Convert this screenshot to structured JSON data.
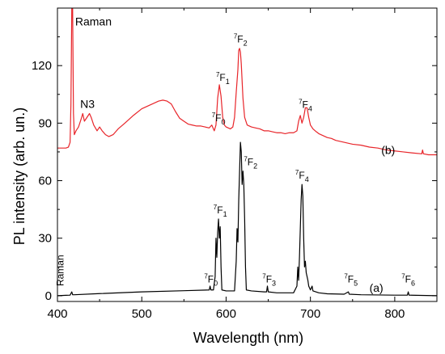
{
  "chart_data": {
    "type": "line",
    "xlabel": "Wavelength (nm)",
    "ylabel": "PL intensity (arb. un.)",
    "xlim": [
      400,
      850
    ],
    "ylim": [
      -3,
      150
    ],
    "xticks": [
      400,
      500,
      600,
      700,
      800
    ],
    "yticks": [
      0,
      30,
      60,
      90,
      120
    ],
    "series": [
      {
        "name": "(b)",
        "color": "#e8252a",
        "points": [
          [
            400,
            77
          ],
          [
            410,
            77
          ],
          [
            413,
            77.5
          ],
          [
            415,
            80
          ],
          [
            416,
            100
          ],
          [
            417,
            150
          ],
          [
            418,
            150
          ],
          [
            419,
            95
          ],
          [
            420,
            84
          ],
          [
            422,
            86
          ],
          [
            425,
            88
          ],
          [
            428,
            92
          ],
          [
            430,
            95
          ],
          [
            432,
            91
          ],
          [
            435,
            93
          ],
          [
            438,
            95
          ],
          [
            440,
            93
          ],
          [
            443,
            89
          ],
          [
            447,
            86
          ],
          [
            450,
            88
          ],
          [
            453,
            86
          ],
          [
            457,
            84
          ],
          [
            461,
            83
          ],
          [
            466,
            84
          ],
          [
            472,
            87
          ],
          [
            480,
            90
          ],
          [
            490,
            94
          ],
          [
            500,
            97.5
          ],
          [
            510,
            99.5
          ],
          [
            520,
            101.5
          ],
          [
            525,
            102
          ],
          [
            530,
            101.5
          ],
          [
            535,
            100
          ],
          [
            540,
            96
          ],
          [
            545,
            92.5
          ],
          [
            550,
            91
          ],
          [
            555,
            89.5
          ],
          [
            560,
            89
          ],
          [
            565,
            88.5
          ],
          [
            570,
            88.5
          ],
          [
            575,
            88
          ],
          [
            580,
            87.5
          ],
          [
            583,
            89
          ],
          [
            586,
            86
          ],
          [
            588,
            89
          ],
          [
            590,
            103
          ],
          [
            592,
            110
          ],
          [
            594,
            104
          ],
          [
            596,
            93
          ],
          [
            598,
            89
          ],
          [
            600,
            88
          ],
          [
            605,
            87
          ],
          [
            608,
            88
          ],
          [
            610,
            93
          ],
          [
            612,
            106
          ],
          [
            614,
            118
          ],
          [
            615,
            128
          ],
          [
            616,
            129
          ],
          [
            617,
            127
          ],
          [
            618,
            121
          ],
          [
            620,
            103
          ],
          [
            622,
            93
          ],
          [
            625,
            89
          ],
          [
            630,
            88
          ],
          [
            635,
            87.5
          ],
          [
            640,
            87
          ],
          [
            645,
            86
          ],
          [
            650,
            86
          ],
          [
            655,
            85.5
          ],
          [
            660,
            85
          ],
          [
            665,
            85
          ],
          [
            670,
            84.5
          ],
          [
            675,
            85
          ],
          [
            680,
            85
          ],
          [
            684,
            86
          ],
          [
            686,
            91
          ],
          [
            688,
            94
          ],
          [
            690,
            90
          ],
          [
            692,
            93
          ],
          [
            694,
            98
          ],
          [
            696,
            98
          ],
          [
            698,
            93
          ],
          [
            700,
            89
          ],
          [
            703,
            87
          ],
          [
            707,
            85.5
          ],
          [
            710,
            84.5
          ],
          [
            715,
            83.5
          ],
          [
            720,
            82.5
          ],
          [
            725,
            82
          ],
          [
            730,
            81
          ],
          [
            740,
            80
          ],
          [
            750,
            79
          ],
          [
            760,
            78.5
          ],
          [
            770,
            77.5
          ],
          [
            780,
            77
          ],
          [
            790,
            76
          ],
          [
            800,
            75.5
          ],
          [
            810,
            75
          ],
          [
            820,
            74.5
          ],
          [
            832,
            74
          ],
          [
            833,
            76
          ],
          [
            834,
            74
          ],
          [
            840,
            73.5
          ],
          [
            850,
            73.5
          ]
        ]
      },
      {
        "name": "(a)",
        "color": "#000000",
        "points": [
          [
            400,
            0
          ],
          [
            410,
            0.2
          ],
          [
            415,
            0.3
          ],
          [
            417,
            2
          ],
          [
            418,
            0.5
          ],
          [
            420,
            0.5
          ],
          [
            450,
            1.1
          ],
          [
            500,
            2
          ],
          [
            550,
            2.6
          ],
          [
            580,
            3
          ],
          [
            581,
            5
          ],
          [
            582,
            3
          ],
          [
            585,
            3
          ],
          [
            587,
            10
          ],
          [
            588,
            30
          ],
          [
            589,
            20
          ],
          [
            590,
            33
          ],
          [
            591,
            40
          ],
          [
            592,
            30
          ],
          [
            593,
            36
          ],
          [
            594,
            15
          ],
          [
            595,
            3
          ],
          [
            600,
            2.5
          ],
          [
            610,
            2.5
          ],
          [
            612,
            18
          ],
          [
            613,
            35
          ],
          [
            614,
            28
          ],
          [
            615,
            50
          ],
          [
            616,
            65
          ],
          [
            617,
            80
          ],
          [
            618,
            75
          ],
          [
            619,
            58
          ],
          [
            620,
            65
          ],
          [
            621,
            58
          ],
          [
            622,
            40
          ],
          [
            623,
            15
          ],
          [
            624,
            3
          ],
          [
            630,
            2.5
          ],
          [
            645,
            2
          ],
          [
            648,
            2
          ],
          [
            649,
            5
          ],
          [
            650,
            2
          ],
          [
            660,
            1.5
          ],
          [
            680,
            1.5
          ],
          [
            684,
            5
          ],
          [
            685,
            15
          ],
          [
            686,
            8
          ],
          [
            687,
            20
          ],
          [
            688,
            35
          ],
          [
            689,
            50
          ],
          [
            690,
            58
          ],
          [
            691,
            52
          ],
          [
            692,
            30
          ],
          [
            693,
            15
          ],
          [
            694,
            18
          ],
          [
            695,
            12
          ],
          [
            697,
            8
          ],
          [
            698,
            5
          ],
          [
            700,
            3
          ],
          [
            702,
            5
          ],
          [
            703,
            2.5
          ],
          [
            710,
            1.5
          ],
          [
            720,
            1
          ],
          [
            740,
            0.8
          ],
          [
            745,
            2
          ],
          [
            746,
            0.8
          ],
          [
            760,
            0.5
          ],
          [
            800,
            0.3
          ],
          [
            815,
            0.3
          ],
          [
            816,
            2
          ],
          [
            817,
            0.3
          ],
          [
            850,
            0
          ]
        ]
      }
    ],
    "annotations": [
      {
        "id": "raman-b",
        "text": "Raman",
        "x": 421,
        "y": 141,
        "series": "(b)"
      },
      {
        "id": "n3",
        "text": "N3",
        "x": 427,
        "y": 98,
        "series": "(b)"
      },
      {
        "id": "f0-b",
        "base": "F",
        "sup": "7",
        "sub": "0",
        "x": 583,
        "y": 91,
        "series": "(b)"
      },
      {
        "id": "f1-b",
        "base": "F",
        "sup": "7",
        "sub": "1",
        "x": 588,
        "y": 112,
        "series": "(b)"
      },
      {
        "id": "f2-b",
        "base": "F",
        "sup": "7",
        "sub": "2",
        "x": 609,
        "y": 132,
        "series": "(b)"
      },
      {
        "id": "f4-b",
        "base": "F",
        "sup": "7",
        "sub": "4",
        "x": 686,
        "y": 98,
        "series": "(b)"
      },
      {
        "id": "label-b",
        "text": "(b)",
        "x": 784,
        "y": 74,
        "series": "(b)"
      },
      {
        "id": "raman-a",
        "text": "Raman",
        "x": 407,
        "y": 5,
        "series": "(a)",
        "rotate": -90
      },
      {
        "id": "f0-a",
        "base": "F",
        "sup": "7",
        "sub": "0",
        "x": 574,
        "y": 7,
        "series": "(a)"
      },
      {
        "id": "f1-a",
        "base": "F",
        "sup": "7",
        "sub": "1",
        "x": 585,
        "y": 43,
        "series": "(a)"
      },
      {
        "id": "f2-a",
        "base": "F",
        "sup": "7",
        "sub": "2",
        "x": 621,
        "y": 68,
        "series": "(a)"
      },
      {
        "id": "f3-a",
        "base": "F",
        "sup": "7",
        "sub": "3",
        "x": 643,
        "y": 7,
        "series": "(a)"
      },
      {
        "id": "f4-a",
        "base": "F",
        "sup": "7",
        "sub": "4",
        "x": 682,
        "y": 61,
        "series": "(a)"
      },
      {
        "id": "f5-a",
        "base": "F",
        "sup": "7",
        "sub": "5",
        "x": 740,
        "y": 7,
        "series": "(a)"
      },
      {
        "id": "label-a",
        "text": "(a)",
        "x": 770,
        "y": 2,
        "series": "(a)"
      },
      {
        "id": "f6-a",
        "base": "F",
        "sup": "7",
        "sub": "6",
        "x": 808,
        "y": 7,
        "series": "(a)"
      }
    ]
  }
}
